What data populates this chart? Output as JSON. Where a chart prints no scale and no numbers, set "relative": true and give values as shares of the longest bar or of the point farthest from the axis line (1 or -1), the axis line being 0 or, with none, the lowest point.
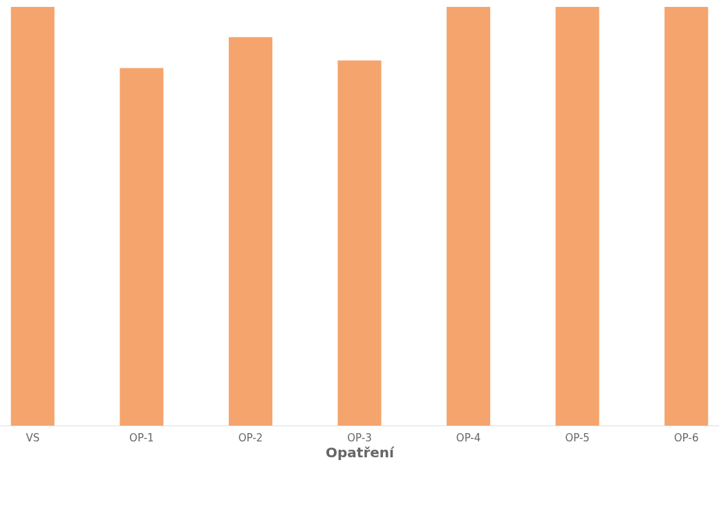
{
  "chart_data": {
    "type": "bar",
    "xlabel": "Opatření",
    "relative": true,
    "categories": [
      "VS",
      "OP-1",
      "OP-2",
      "OP-3",
      "OP-4",
      "OP-5",
      "OP-6"
    ],
    "values": [
      1,
      0.854,
      0.928,
      0.872,
      1,
      1,
      1
    ],
    "color": "#f4a46c"
  }
}
